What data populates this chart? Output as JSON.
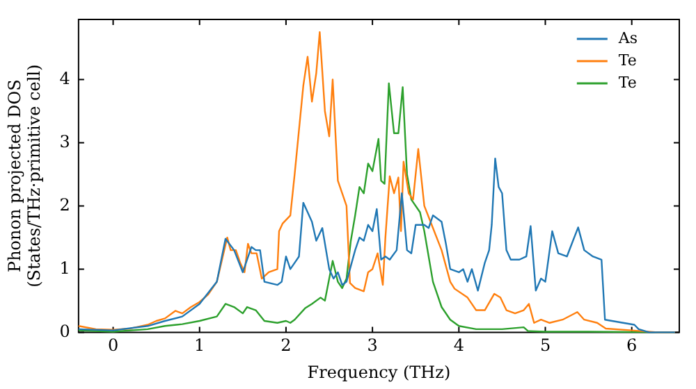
{
  "chart_data": {
    "type": "line",
    "xlabel": "Frequency (THz)",
    "ylabel": "Phonon projected DOS\n(States/THz·primitive cell)",
    "xlim": [
      -0.4,
      6.55
    ],
    "ylim": [
      0,
      4.95
    ],
    "xticks": [
      0,
      1,
      2,
      3,
      4,
      5,
      6
    ],
    "yticks": [
      0,
      1,
      2,
      3,
      4
    ],
    "grid": false,
    "legend": "top right",
    "marker": "none",
    "line_style": "solid",
    "series": [
      {
        "name": "As",
        "color": "#1f77b4",
        "x": [
          -0.4,
          0,
          0.4,
          0.6,
          0.8,
          1.0,
          1.2,
          1.3,
          1.4,
          1.5,
          1.6,
          1.65,
          1.7,
          1.75,
          1.9,
          1.95,
          2.0,
          2.05,
          2.1,
          2.15,
          2.2,
          2.3,
          2.35,
          2.42,
          2.5,
          2.55,
          2.6,
          2.65,
          2.7,
          2.8,
          2.85,
          2.9,
          2.95,
          3.0,
          3.05,
          3.1,
          3.15,
          3.2,
          3.28,
          3.34,
          3.4,
          3.45,
          3.5,
          3.6,
          3.65,
          3.7,
          3.8,
          3.85,
          3.9,
          4.0,
          4.05,
          4.1,
          4.15,
          4.22,
          4.3,
          4.35,
          4.38,
          4.42,
          4.46,
          4.5,
          4.55,
          4.6,
          4.7,
          4.78,
          4.83,
          4.89,
          4.95,
          5.0,
          5.08,
          5.15,
          5.25,
          5.32,
          5.38,
          5.45,
          5.55,
          5.65,
          5.69,
          5.9,
          6.03,
          6.08,
          6.2,
          6.5
        ],
        "values": [
          0.05,
          0.03,
          0.1,
          0.18,
          0.25,
          0.45,
          0.8,
          1.48,
          1.3,
          0.95,
          1.35,
          1.3,
          1.3,
          0.8,
          0.75,
          0.8,
          1.2,
          1.0,
          1.1,
          1.2,
          2.05,
          1.75,
          1.45,
          1.65,
          1.0,
          0.85,
          0.95,
          0.75,
          0.8,
          1.3,
          1.5,
          1.45,
          1.7,
          1.6,
          1.95,
          1.15,
          1.2,
          1.15,
          1.3,
          2.2,
          1.3,
          1.25,
          1.7,
          1.7,
          1.65,
          1.85,
          1.75,
          1.4,
          1.0,
          0.95,
          1.0,
          0.8,
          1.0,
          0.66,
          1.1,
          1.3,
          1.7,
          2.75,
          2.3,
          2.2,
          1.3,
          1.15,
          1.15,
          1.2,
          1.68,
          0.66,
          0.85,
          0.8,
          1.6,
          1.25,
          1.2,
          1.45,
          1.66,
          1.3,
          1.2,
          1.15,
          0.2,
          0.15,
          0.12,
          0.05,
          0.0,
          0.0
        ]
      },
      {
        "name": "Te",
        "color": "#ff7f0e",
        "x": [
          -0.4,
          -0.2,
          0,
          0.2,
          0.4,
          0.5,
          0.6,
          0.72,
          0.8,
          0.9,
          1.0,
          1.1,
          1.2,
          1.32,
          1.36,
          1.42,
          1.47,
          1.52,
          1.56,
          1.6,
          1.66,
          1.72,
          1.8,
          1.9,
          1.92,
          1.96,
          2.05,
          2.1,
          2.2,
          2.25,
          2.3,
          2.35,
          2.39,
          2.45,
          2.5,
          2.54,
          2.6,
          2.7,
          2.74,
          2.8,
          2.9,
          2.95,
          3.0,
          3.06,
          3.12,
          3.15,
          3.2,
          3.25,
          3.3,
          3.33,
          3.36,
          3.42,
          3.47,
          3.53,
          3.6,
          3.7,
          3.8,
          3.9,
          3.95,
          4.1,
          4.2,
          4.3,
          4.41,
          4.48,
          4.55,
          4.65,
          4.75,
          4.81,
          4.87,
          4.95,
          5.05,
          5.2,
          5.37,
          5.45,
          5.6,
          5.7,
          6.0,
          6.3,
          6.5
        ],
        "values": [
          0.1,
          0.05,
          0.04,
          0.06,
          0.12,
          0.18,
          0.22,
          0.34,
          0.3,
          0.4,
          0.48,
          0.6,
          0.8,
          1.5,
          1.3,
          1.3,
          1.1,
          0.95,
          1.4,
          1.25,
          1.25,
          0.85,
          0.95,
          1.0,
          1.6,
          1.72,
          1.85,
          2.5,
          3.9,
          4.36,
          3.65,
          4.1,
          4.75,
          3.5,
          3.1,
          4.0,
          2.4,
          2.0,
          0.78,
          0.7,
          0.65,
          0.95,
          1.0,
          1.25,
          0.75,
          1.5,
          2.47,
          2.2,
          2.45,
          1.6,
          2.7,
          2.2,
          2.1,
          2.9,
          2.0,
          1.65,
          1.3,
          0.8,
          0.69,
          0.55,
          0.35,
          0.35,
          0.61,
          0.55,
          0.35,
          0.3,
          0.35,
          0.45,
          0.15,
          0.2,
          0.15,
          0.2,
          0.32,
          0.2,
          0.15,
          0.06,
          0.03,
          0.0,
          0.0
        ]
      },
      {
        "name": "Te",
        "color": "#2ca02c",
        "x": [
          -0.4,
          0,
          0.4,
          0.6,
          0.8,
          1.0,
          1.2,
          1.3,
          1.4,
          1.5,
          1.55,
          1.65,
          1.75,
          1.9,
          2.0,
          2.05,
          2.1,
          2.22,
          2.3,
          2.4,
          2.45,
          2.54,
          2.6,
          2.65,
          2.7,
          2.75,
          2.8,
          2.85,
          2.9,
          2.95,
          3.0,
          3.07,
          3.1,
          3.14,
          3.19,
          3.25,
          3.3,
          3.35,
          3.4,
          3.45,
          3.55,
          3.6,
          3.7,
          3.8,
          3.9,
          4.0,
          4.2,
          4.5,
          4.75,
          4.8,
          5.0,
          5.5,
          6.5
        ],
        "values": [
          0.03,
          0.01,
          0.05,
          0.1,
          0.13,
          0.18,
          0.25,
          0.45,
          0.4,
          0.3,
          0.4,
          0.35,
          0.18,
          0.15,
          0.18,
          0.15,
          0.2,
          0.38,
          0.45,
          0.55,
          0.5,
          1.13,
          0.8,
          0.7,
          0.85,
          1.45,
          1.85,
          2.3,
          2.2,
          2.67,
          2.55,
          3.06,
          2.4,
          2.35,
          3.94,
          3.15,
          3.15,
          3.88,
          2.5,
          2.1,
          1.9,
          1.6,
          0.8,
          0.4,
          0.2,
          0.1,
          0.05,
          0.05,
          0.08,
          0.02,
          0.01,
          0.01,
          0.0
        ]
      }
    ]
  }
}
